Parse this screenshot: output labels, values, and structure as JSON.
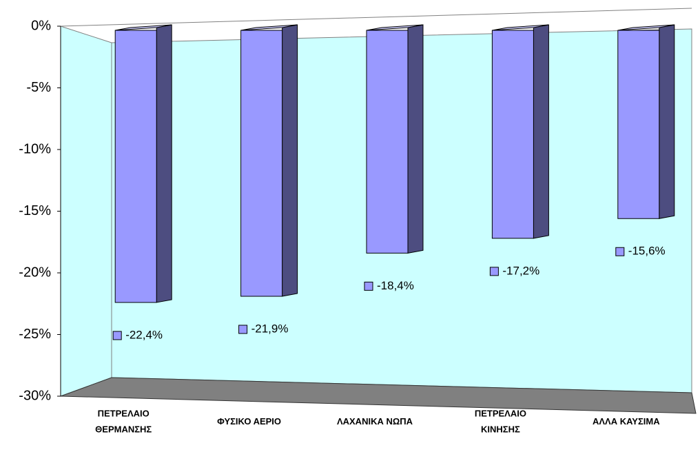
{
  "chart_data": {
    "type": "bar",
    "categories": [
      "ΠΕΤΡΕΛΑΙΟ\nΘΕΡΜΑΝΣΗΣ",
      "ΦΥΣΙΚΟ ΑΕΡΙΟ",
      "ΛΑΧΑΝΙΚΑ ΝΩΠΑ",
      "ΠΕΤΡΕΛΑΙΟ\nΚΙΝΗΣΗΣ",
      "ΑΛΛΑ ΚΑΥΣΙΜΑ"
    ],
    "values": [
      -22.4,
      -21.9,
      -18.4,
      -17.2,
      -15.6
    ],
    "value_labels": [
      "-22,4%",
      "-21,9%",
      "-18,4%",
      "-17,2%",
      "-15,6%"
    ],
    "color": "#9999ff",
    "ylim": [
      -30,
      0
    ],
    "yticks": [
      {
        "value": 0,
        "label": "0%"
      },
      {
        "value": -5,
        "label": "-5%"
      },
      {
        "value": -10,
        "label": "-10%"
      },
      {
        "value": -15,
        "label": "-15%"
      },
      {
        "value": -20,
        "label": "-20%"
      },
      {
        "value": -25,
        "label": "-25%"
      },
      {
        "value": -30,
        "label": "-30%"
      }
    ]
  }
}
